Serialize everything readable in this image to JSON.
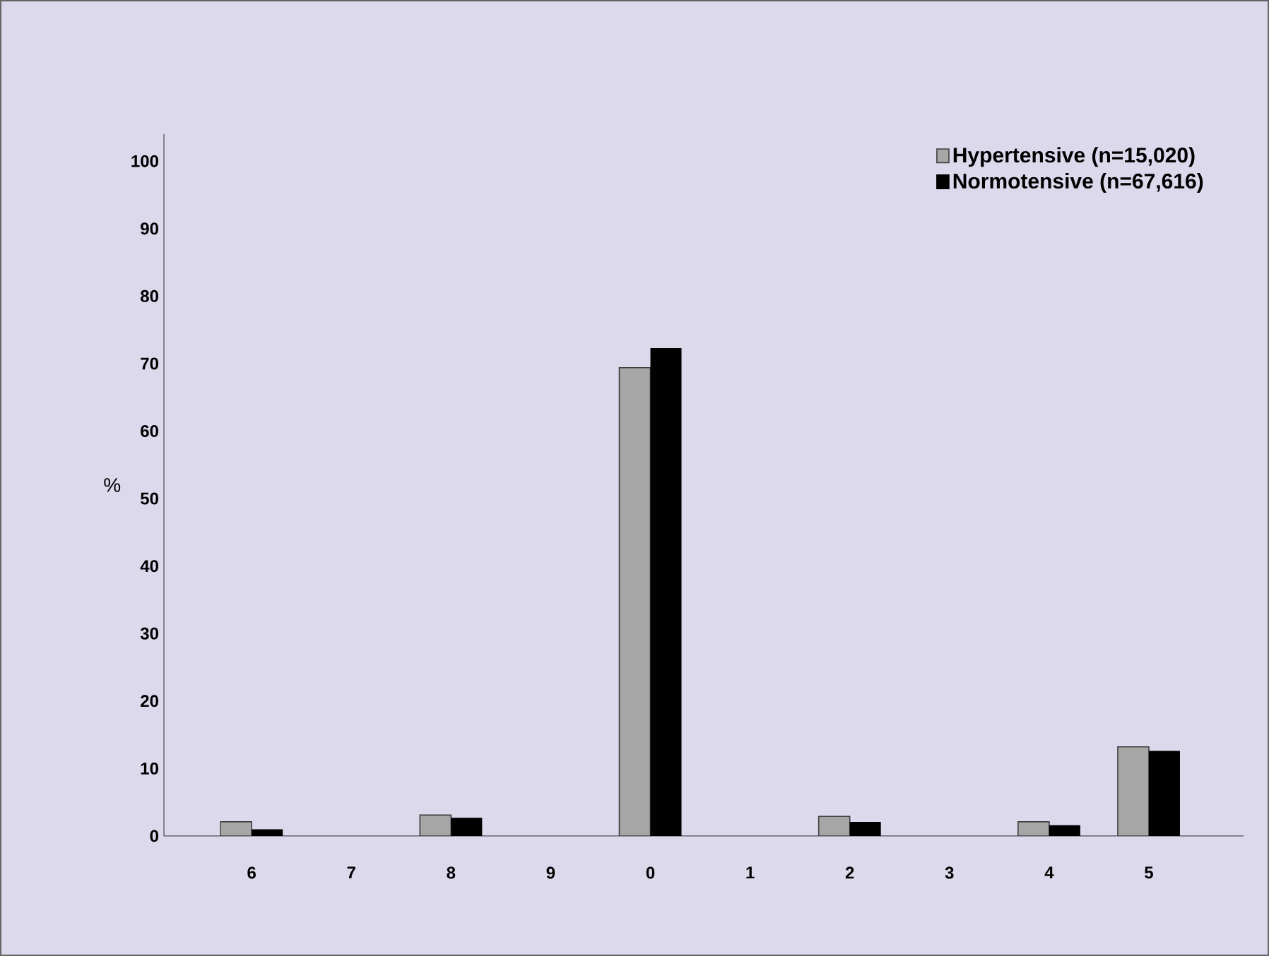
{
  "chart_data": {
    "type": "bar",
    "ylabel": "%",
    "categories": [
      "6",
      "7",
      "8",
      "9",
      "0",
      "1",
      "2",
      "3",
      "4",
      "5"
    ],
    "series": [
      {
        "name": "Hypertensive  (n=15,020)",
        "color": "#a6a6a6",
        "values": [
          2.1,
          null,
          3.1,
          null,
          69.4,
          null,
          2.9,
          null,
          2.1,
          13.2
        ]
      },
      {
        "name": "Normotensive (n=67,616)",
        "color": "#000000",
        "values": [
          1.0,
          null,
          2.7,
          null,
          72.3,
          null,
          2.1,
          null,
          1.6,
          12.6
        ]
      }
    ],
    "ylim": [
      0,
      104
    ],
    "yticks": [
      0,
      10,
      20,
      30,
      40,
      50,
      60,
      70,
      80,
      90,
      100
    ],
    "grid": false,
    "legend": "top right"
  }
}
